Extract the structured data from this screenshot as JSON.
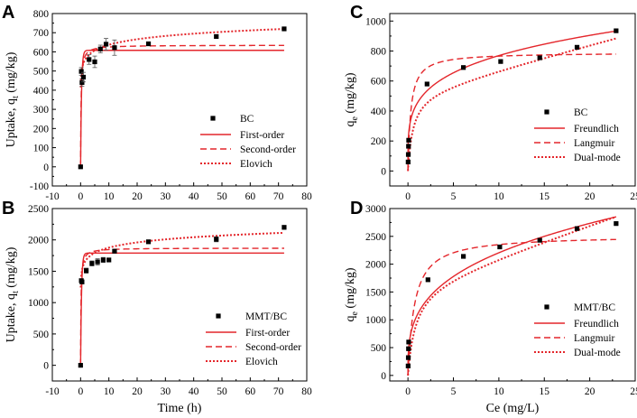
{
  "chart_data": [
    {
      "panel": "A",
      "type": "scatter",
      "xlabel": "",
      "ylabel": "Uptake, q_t (mg/kg)",
      "ylabel_main": "Uptake, q",
      "ylabel_sub": "t",
      "ylabel_unit": " (mg/kg)",
      "xlim": [
        -10,
        80
      ],
      "ylim": [
        -100,
        800
      ],
      "xticks": [
        -10,
        0,
        10,
        20,
        30,
        40,
        50,
        60,
        70,
        80
      ],
      "yticks": [
        -100,
        0,
        100,
        200,
        300,
        400,
        500,
        600,
        700,
        800
      ],
      "ytick_labels": [
        "-100",
        "0",
        "100",
        "200",
        "300",
        "400",
        "500",
        "600",
        "700",
        "800"
      ],
      "points": [
        {
          "x": 0,
          "y": 0,
          "err": 0
        },
        {
          "x": 0.25,
          "y": 498,
          "err": 20
        },
        {
          "x": 0.5,
          "y": 440,
          "err": 20
        },
        {
          "x": 1,
          "y": 468,
          "err": 25
        },
        {
          "x": 3,
          "y": 560,
          "err": 25
        },
        {
          "x": 5,
          "y": 548,
          "err": 30
        },
        {
          "x": 7,
          "y": 615,
          "err": 20
        },
        {
          "x": 9,
          "y": 640,
          "err": 30
        },
        {
          "x": 12,
          "y": 622,
          "err": 40
        },
        {
          "x": 24,
          "y": 642,
          "err": 8
        },
        {
          "x": 48,
          "y": 680,
          "err": 8
        },
        {
          "x": 72,
          "y": 720,
          "err": 8
        }
      ],
      "models": [
        {
          "name": "First-order",
          "kind": "pfo",
          "qe": 608,
          "k": 3.0,
          "style": "solid"
        },
        {
          "name": "Second-order",
          "kind": "pso",
          "qe": 635,
          "k": 0.01,
          "style": "dashed"
        },
        {
          "name": "Elovich",
          "kind": "elovich",
          "a": 540,
          "b": 42,
          "style": "dotted"
        }
      ],
      "legend": {
        "position": "right",
        "series_name": "BC"
      }
    },
    {
      "panel": "B",
      "type": "scatter",
      "xlabel": "Time (h)",
      "ylabel": "Uptake, q_t (mg/kg)",
      "ylabel_main": "Uptake, q",
      "ylabel_sub": "t",
      "ylabel_unit": " (mg/kg)",
      "xlim": [
        -10,
        80
      ],
      "ylim": [
        -250,
        2500
      ],
      "xticks": [
        -10,
        0,
        10,
        20,
        30,
        40,
        50,
        60,
        70,
        80
      ],
      "yticks": [
        0,
        500,
        1000,
        1500,
        2000,
        2500
      ],
      "ytick_labels": [
        "0",
        "500",
        "1000",
        "1500",
        "2000",
        "2500"
      ],
      "points": [
        {
          "x": 0,
          "y": 0,
          "err": 0
        },
        {
          "x": 0.25,
          "y": 1350,
          "err": 30
        },
        {
          "x": 0.5,
          "y": 1330,
          "err": 30
        },
        {
          "x": 2,
          "y": 1510,
          "err": 40
        },
        {
          "x": 4,
          "y": 1625,
          "err": 40
        },
        {
          "x": 6,
          "y": 1650,
          "err": 50
        },
        {
          "x": 8,
          "y": 1680,
          "err": 40
        },
        {
          "x": 10,
          "y": 1680,
          "err": 30
        },
        {
          "x": 12,
          "y": 1820,
          "err": 25
        },
        {
          "x": 24,
          "y": 1970,
          "err": 20
        },
        {
          "x": 48,
          "y": 2010,
          "err": 40
        },
        {
          "x": 72,
          "y": 2200,
          "err": 30
        }
      ],
      "models": [
        {
          "name": "First-order",
          "kind": "pfo",
          "qe": 1790,
          "k": 3.0,
          "style": "solid"
        },
        {
          "name": "Second-order",
          "kind": "pso",
          "qe": 1870,
          "k": 0.004,
          "style": "dashed"
        },
        {
          "name": "Elovich",
          "kind": "elovich",
          "a": 1600,
          "b": 120,
          "style": "dotted"
        }
      ],
      "legend": {
        "position": "right",
        "series_name": "MMT/BC"
      }
    },
    {
      "panel": "C",
      "type": "scatter",
      "xlabel": "",
      "ylabel": "q_e (mg/kg)",
      "ylabel_main": "q",
      "ylabel_sub": "e",
      "ylabel_unit": " (mg/kg)",
      "xlim": [
        -2,
        25
      ],
      "ylim": [
        -100,
        1050
      ],
      "xticks": [
        0,
        5,
        10,
        15,
        20,
        25
      ],
      "yticks": [
        0,
        200,
        400,
        600,
        800,
        1000
      ],
      "ytick_labels": [
        "0",
        "200",
        "400",
        "600",
        "800",
        "1000"
      ],
      "points": [
        {
          "x": 0.02,
          "y": 60
        },
        {
          "x": 0.04,
          "y": 110
        },
        {
          "x": 0.06,
          "y": 165
        },
        {
          "x": 0.08,
          "y": 205
        },
        {
          "x": 2.1,
          "y": 580
        },
        {
          "x": 6.1,
          "y": 690
        },
        {
          "x": 10.2,
          "y": 730
        },
        {
          "x": 14.5,
          "y": 755
        },
        {
          "x": 18.6,
          "y": 825
        },
        {
          "x": 22.9,
          "y": 935
        }
      ],
      "models": [
        {
          "name": "Freundlich",
          "kind": "freundlich",
          "K": 450,
          "n": 0.233,
          "style": "solid"
        },
        {
          "name": "Langmuir",
          "kind": "langmuir",
          "Q": 790,
          "b": 3.2,
          "style": "dashed"
        },
        {
          "name": "Dual-mode",
          "kind": "dualmode",
          "Kp": 16,
          "Q": 530,
          "b": 1.8,
          "style": "dotted"
        }
      ],
      "legend": {
        "position": "bottom-right",
        "series_name": "BC"
      }
    },
    {
      "panel": "D",
      "type": "scatter",
      "xlabel": "Ce (mg/L)",
      "ylabel": "q_e (mg/kg)",
      "ylabel_main": "q",
      "ylabel_sub": "e",
      "ylabel_unit": " (mg/kg)",
      "xlim": [
        -2,
        25
      ],
      "ylim": [
        -100,
        3000
      ],
      "xticks": [
        0,
        5,
        10,
        15,
        20,
        25
      ],
      "yticks": [
        0,
        500,
        1000,
        1500,
        2000,
        2500,
        3000
      ],
      "ytick_labels": [
        "0",
        "500",
        "1000",
        "1500",
        "2000",
        "2500",
        "3000"
      ],
      "points": [
        {
          "x": 0.02,
          "y": 170
        },
        {
          "x": 0.04,
          "y": 320
        },
        {
          "x": 0.06,
          "y": 480
        },
        {
          "x": 0.08,
          "y": 600
        },
        {
          "x": 2.2,
          "y": 1720
        },
        {
          "x": 6.1,
          "y": 2140
        },
        {
          "x": 10.1,
          "y": 2310
        },
        {
          "x": 14.5,
          "y": 2430
        },
        {
          "x": 18.6,
          "y": 2640
        },
        {
          "x": 22.9,
          "y": 2730
        }
      ],
      "models": [
        {
          "name": "Freundlich",
          "kind": "freundlich",
          "K": 1080,
          "n": 0.31,
          "style": "solid"
        },
        {
          "name": "Langmuir",
          "kind": "langmuir",
          "Q": 2520,
          "b": 1.4,
          "style": "dashed"
        },
        {
          "name": "Dual-mode",
          "kind": "dualmode",
          "Kp": 55,
          "Q": 1650,
          "b": 1.2,
          "style": "dotted"
        }
      ],
      "legend": {
        "position": "bottom-right",
        "series_name": "MMT/BC"
      }
    }
  ]
}
